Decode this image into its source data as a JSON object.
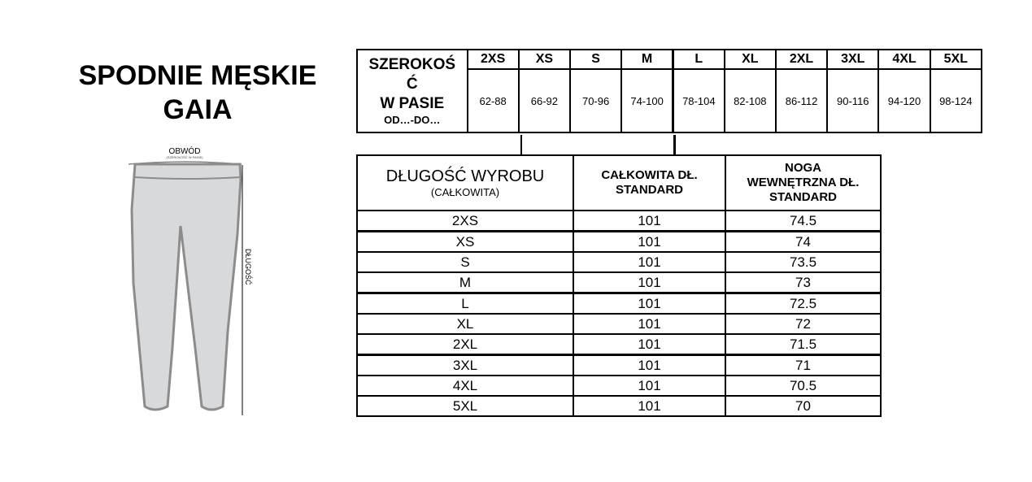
{
  "title": [
    "SPODNIE MĘSKIE",
    "GAIA"
  ],
  "diagram": {
    "circumference_label": "OBWÓD",
    "circumference_sub": "(SZEROKOŚĆ W PASIE)",
    "length_label": "DŁUGOŚĆ"
  },
  "waist_table": {
    "label_lines": [
      "SZEROKOŚ",
      "Ć",
      "W PASIE"
    ],
    "label_sub": "OD…-DO…",
    "sizes": [
      "2XS",
      "XS",
      "S",
      "M",
      "L",
      "XL",
      "2XL",
      "3XL",
      "4XL",
      "5XL"
    ],
    "values": [
      "62-88",
      "66-92",
      "70-96",
      "74-100",
      "78-104",
      "82-108",
      "86-112",
      "90-116",
      "94-120",
      "98-124"
    ]
  },
  "length_table": {
    "label": "DŁUGOŚĆ WYROBU",
    "label_sub": "(CAŁKOWITA)",
    "col1_lines": [
      "CAŁKOWITA DŁ.",
      "STANDARD"
    ],
    "col2_lines": [
      "NOGA",
      "WEWNĘTRZNA DŁ.",
      "STANDARD"
    ],
    "rows": [
      {
        "size": "2XS",
        "total": "101",
        "inner": "74.5"
      },
      {
        "size": "XS",
        "total": "101",
        "inner": "74"
      },
      {
        "size": "S",
        "total": "101",
        "inner": "73.5"
      },
      {
        "size": "M",
        "total": "101",
        "inner": "73"
      },
      {
        "size": "L",
        "total": "101",
        "inner": "72.5"
      },
      {
        "size": "XL",
        "total": "101",
        "inner": "72"
      },
      {
        "size": "2XL",
        "total": "101",
        "inner": "71.5"
      },
      {
        "size": "3XL",
        "total": "101",
        "inner": "71"
      },
      {
        "size": "4XL",
        "total": "101",
        "inner": "70.5"
      },
      {
        "size": "5XL",
        "total": "101",
        "inner": "70"
      }
    ]
  }
}
